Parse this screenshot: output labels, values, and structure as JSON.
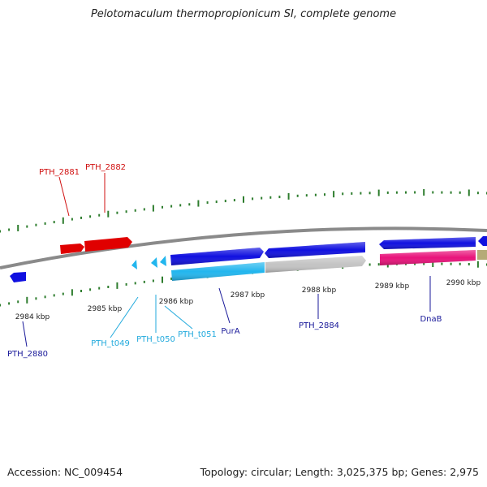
{
  "title": "Pelotomaculum thermopropionicum SI, complete genome",
  "footer": {
    "accession": "Accession: NC_009454",
    "summary": "Topology: circular; Length: 3,025,375 bp; Genes: 2,975"
  },
  "colors": {
    "backbone": "#8a8a8a",
    "tick": "#2e7d2e",
    "red_gene": "#e00000",
    "blue_gene": "#1010e0",
    "cyan_gene": "#22b6ee",
    "magenta_gene": "#e8127a",
    "grey_gene": "#c4c4c4",
    "olive_gene": "#b5ab77"
  },
  "scale_labels": [
    {
      "text": "2984 kbp"
    },
    {
      "text": "2985 kbp"
    },
    {
      "text": "2986 kbp"
    },
    {
      "text": "2987 kbp"
    },
    {
      "text": "2988 kbp"
    },
    {
      "text": "2989 kbp"
    },
    {
      "text": "2990 kbp"
    }
  ],
  "gene_labels": [
    {
      "text": "PTH_2881",
      "color": "#d01010"
    },
    {
      "text": "PTH_2882",
      "color": "#d01010"
    },
    {
      "text": "PTH_2880",
      "color": "#1a1a9a"
    },
    {
      "text": "PTH_t049",
      "color": "#22aadd"
    },
    {
      "text": "PTH_t050",
      "color": "#22aadd"
    },
    {
      "text": "PTH_t051",
      "color": "#22aadd"
    },
    {
      "text": "PurA",
      "color": "#1a1a9a"
    },
    {
      "text": "PTH_2884",
      "color": "#1a1a9a"
    },
    {
      "text": "DnaB",
      "color": "#1a1a9a"
    }
  ]
}
